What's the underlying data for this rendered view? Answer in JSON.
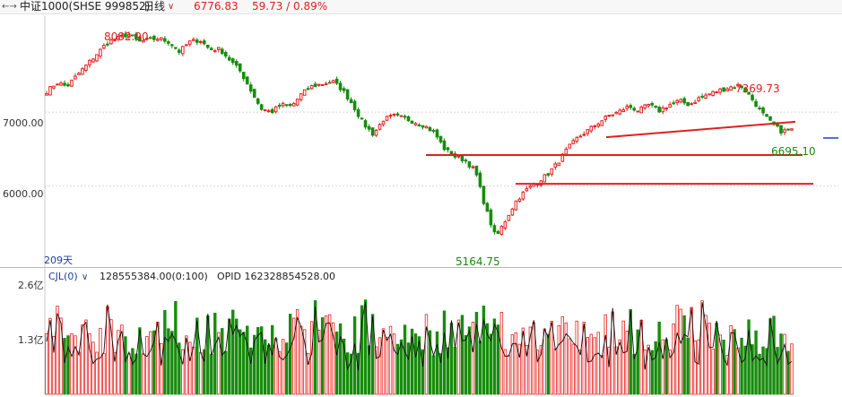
{
  "header": {
    "nav_icon": "left-right-arrows-icon",
    "symbol": "中证1000(SHSE 999852)",
    "period": "日线",
    "period_icon": "chevron-down-icon",
    "last_price": "6776.83",
    "change": "59.73 / 0.89%"
  },
  "colors": {
    "up": "#e8201e",
    "down": "#188c0e",
    "grid": "#d8d8d8",
    "axis_text": "#333333",
    "trendline": "#e02020",
    "volume_line": "#111111"
  },
  "price_panel": {
    "ytick_labels": [
      "7000.00",
      "6000.00"
    ],
    "day_count_label": "209天",
    "annotations": {
      "high_left": "8082.90",
      "high_right": "7369.73",
      "low": "5164.75",
      "last_close": "6695.10"
    }
  },
  "volume_panel": {
    "indicator_label": "CJL(0)",
    "indicator_icon": "chevron-down-icon",
    "indicator_value": "128555384.00(0:100)",
    "opid_label": "OPID 162328854528.00",
    "ytick_labels": [
      "2.6亿",
      "1.3亿"
    ]
  },
  "chart_data": [
    {
      "type": "candlestick",
      "title": "",
      "xlabel": "",
      "ylabel": "",
      "ylim": [
        5000,
        8300
      ],
      "yticks": [
        7000,
        6000
      ],
      "annotations": [
        {
          "text": "8082.90",
          "value": 8082.9
        },
        {
          "text": "7369.73",
          "value": 7369.73
        },
        {
          "text": "5164.75",
          "value": 5164.75
        },
        {
          "text": "6695.10",
          "value": 6695.1
        }
      ],
      "support_lines": [
        {
          "kind": "rising_trendline",
          "from": 6660,
          "to": 6870
        },
        {
          "kind": "horizontal",
          "value": 6420
        },
        {
          "kind": "horizontal",
          "value": 6030
        }
      ],
      "close_path": [
        7280,
        7400,
        7350,
        7500,
        7650,
        7800,
        7950,
        8000,
        8060,
        7950,
        7980,
        8000,
        7950,
        7820,
        7950,
        7980,
        7850,
        7850,
        7700,
        7550,
        7300,
        7050,
        7000,
        7100,
        7080,
        7250,
        7350,
        7380,
        7420,
        7300,
        7100,
        6850,
        6700,
        6900,
        6950,
        6920,
        6870,
        6820,
        6720,
        6500,
        6400,
        6350,
        6200,
        5700,
        5300,
        5550,
        5800,
        5950,
        6050,
        6150,
        6300,
        6500,
        6650,
        6750,
        6850,
        6950,
        7000,
        7080,
        7020,
        7100,
        7020,
        7100,
        7150,
        7100,
        7200,
        7250,
        7300,
        7340,
        7360,
        7200,
        7000,
        6850,
        6740,
        6760
      ]
    },
    {
      "type": "bar",
      "title": "",
      "xlabel": "",
      "ylabel": "",
      "ylim": [
        0,
        260000000
      ],
      "yticks": [
        260000000,
        130000000
      ],
      "note": "daily volume bars, red = up day, green = down day, with black volume ratio line",
      "approx_volume_range": [
        90000000,
        230000000
      ]
    }
  ]
}
